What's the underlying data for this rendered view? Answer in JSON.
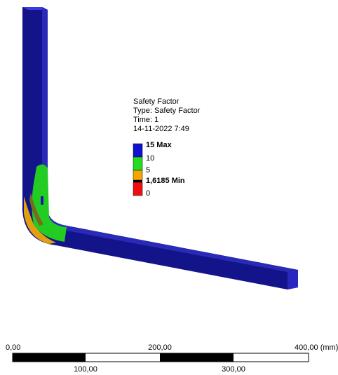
{
  "legend": {
    "title": "Safety Factor",
    "type": "Type: Safety Factor",
    "time": "Time: 1",
    "date": "14-11-2022 7:49",
    "entries": [
      "15 Max",
      "10",
      "5",
      "1,6185 Min",
      "0"
    ]
  },
  "scale_bar": {
    "top_labels": [
      "0,00",
      "200,00",
      "400,00 (mm)"
    ],
    "bottom_labels": [
      "100,00",
      "300,00"
    ]
  }
}
